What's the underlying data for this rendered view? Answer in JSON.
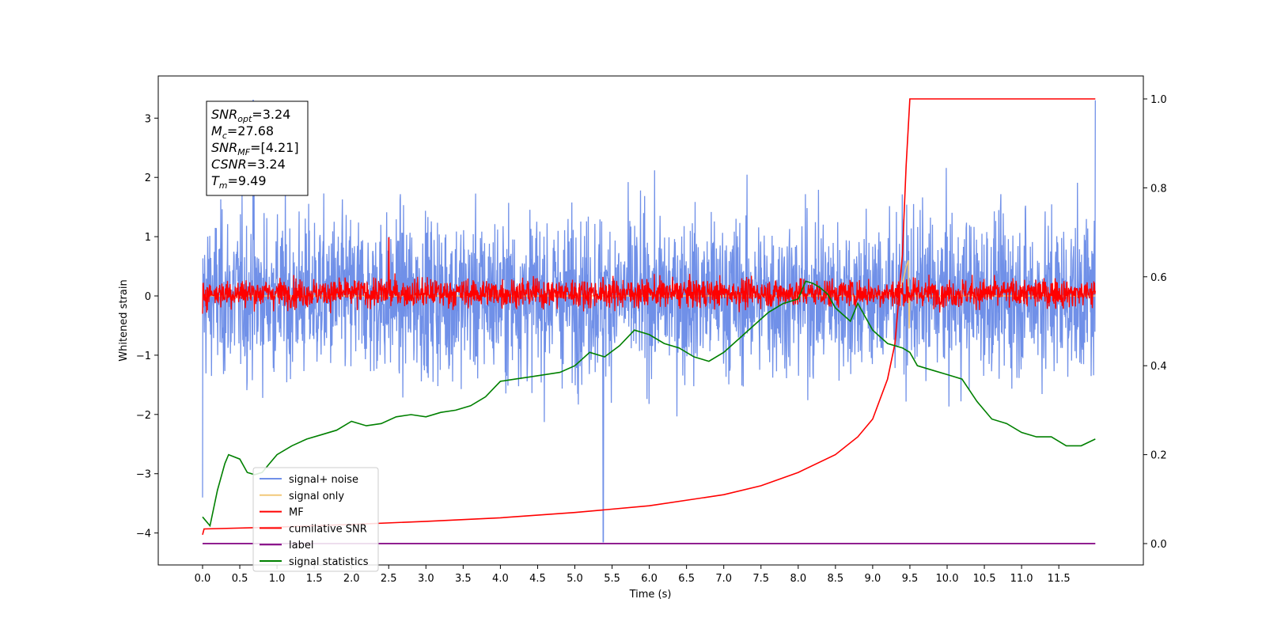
{
  "chart_data": {
    "type": "line",
    "xlabel": "Time (s)",
    "ylabel_left": "Whitened strain",
    "ylabel_right": "",
    "xlim": [
      -0.6,
      12.5
    ],
    "ylim_left": [
      -4.5,
      3.7
    ],
    "ylim_right": [
      -0.05,
      1.05
    ],
    "x_ticks": [
      "0.0",
      "0.5",
      "1.0",
      "1.5",
      "2.0",
      "2.5",
      "3.0",
      "3.5",
      "4.0",
      "4.5",
      "5.0",
      "5.5",
      "6.0",
      "6.5",
      "7.0",
      "7.5",
      "8.0",
      "8.5",
      "9.0",
      "9.5",
      "10.0",
      "10.5",
      "11.0",
      "11.5"
    ],
    "y_ticks_left": [
      "3",
      "2",
      "1",
      "0",
      "−1",
      "−2",
      "−3",
      "−4"
    ],
    "y_ticks_right": [
      "1.0",
      "0.8",
      "0.6",
      "0.4",
      "0.2",
      "0.0"
    ],
    "grid": false,
    "legend_position": "lower-left",
    "info_box": [
      {
        "base": "SNR",
        "sub": "opt",
        "value": "=3.24"
      },
      {
        "base": "M",
        "sub": "c",
        "value": "=27.68"
      },
      {
        "base": "SNR",
        "sub": "MF",
        "value": "=[4.21]"
      },
      {
        "base": "CSNR",
        "sub": "",
        "value": "=3.24"
      },
      {
        "base": "T",
        "sub": "m",
        "value": "=9.49"
      }
    ],
    "series": [
      {
        "name": "signal+ noise",
        "axis": "left",
        "color": "#7090e8",
        "description_range": [
          -4.15,
          3.35
        ],
        "typical_band": [
          -1.6,
          1.6
        ],
        "x_range": [
          0.0,
          11.99
        ]
      },
      {
        "name": "signal only",
        "axis": "left",
        "color": "#f2c87a",
        "x": [
          0.0,
          9.0,
          9.3,
          9.4,
          9.45,
          9.48,
          9.49,
          9.5,
          11.99
        ],
        "y": [
          0.0,
          0.0,
          0.05,
          0.2,
          0.5,
          0.6,
          -0.55,
          0.0,
          0.0
        ]
      },
      {
        "name": "MF",
        "axis": "left",
        "color": "#ff0000",
        "typical_band": [
          -0.35,
          0.45
        ],
        "peak_max": 0.98,
        "x_range": [
          0.0,
          11.99
        ]
      },
      {
        "name": "cumilative SNR",
        "axis": "right",
        "color": "#ff0000",
        "x": [
          0.0,
          0.02,
          1.0,
          2.0,
          3.0,
          4.0,
          5.0,
          6.0,
          7.0,
          7.5,
          8.0,
          8.5,
          8.8,
          9.0,
          9.2,
          9.3,
          9.4,
          9.45,
          9.5,
          11.99
        ],
        "y": [
          0.02,
          0.033,
          0.037,
          0.043,
          0.05,
          0.058,
          0.07,
          0.085,
          0.11,
          0.13,
          0.16,
          0.2,
          0.24,
          0.28,
          0.37,
          0.45,
          0.65,
          0.85,
          1.0,
          1.0
        ]
      },
      {
        "name": "label",
        "axis": "right",
        "color": "#800080",
        "x": [
          0.0,
          11.99
        ],
        "y": [
          0.0,
          0.0
        ]
      },
      {
        "name": "signal statistics",
        "axis": "right",
        "color": "#008000",
        "x": [
          0.0,
          0.1,
          0.2,
          0.3,
          0.35,
          0.5,
          0.6,
          0.7,
          0.8,
          0.9,
          1.0,
          1.2,
          1.4,
          1.6,
          1.8,
          2.0,
          2.2,
          2.4,
          2.6,
          2.8,
          3.0,
          3.2,
          3.4,
          3.6,
          3.8,
          4.0,
          4.2,
          4.4,
          4.6,
          4.8,
          5.0,
          5.2,
          5.4,
          5.6,
          5.8,
          6.0,
          6.2,
          6.4,
          6.6,
          6.8,
          7.0,
          7.2,
          7.4,
          7.6,
          7.8,
          8.0,
          8.1,
          8.2,
          8.3,
          8.4,
          8.5,
          8.7,
          8.8,
          8.9,
          9.0,
          9.2,
          9.4,
          9.5,
          9.6,
          9.8,
          10.0,
          10.2,
          10.4,
          10.6,
          10.8,
          11.0,
          11.2,
          11.4,
          11.6,
          11.8,
          11.99
        ],
        "y": [
          0.06,
          0.04,
          0.12,
          0.18,
          0.2,
          0.19,
          0.16,
          0.155,
          0.16,
          0.18,
          0.2,
          0.22,
          0.235,
          0.245,
          0.255,
          0.275,
          0.265,
          0.27,
          0.285,
          0.29,
          0.285,
          0.295,
          0.3,
          0.31,
          0.33,
          0.365,
          0.37,
          0.375,
          0.38,
          0.385,
          0.4,
          0.43,
          0.42,
          0.445,
          0.48,
          0.47,
          0.45,
          0.44,
          0.42,
          0.41,
          0.43,
          0.46,
          0.49,
          0.52,
          0.54,
          0.55,
          0.59,
          0.585,
          0.575,
          0.56,
          0.53,
          0.5,
          0.54,
          0.51,
          0.48,
          0.45,
          0.44,
          0.43,
          0.4,
          0.39,
          0.38,
          0.37,
          0.32,
          0.28,
          0.27,
          0.25,
          0.24,
          0.24,
          0.22,
          0.22,
          0.235
        ]
      }
    ]
  }
}
